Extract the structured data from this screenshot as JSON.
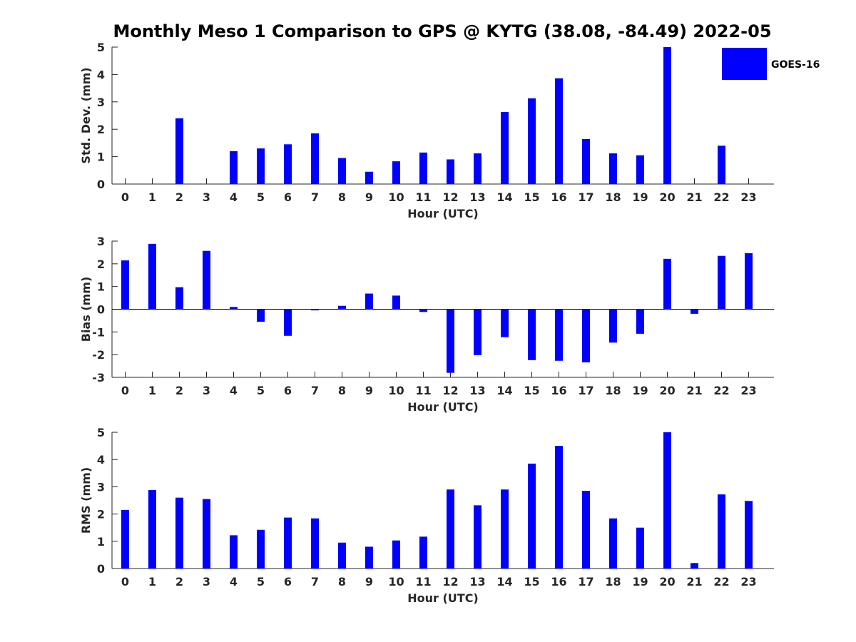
{
  "title": "Monthly Meso 1 Comparison to GPS @ KYTG (38.08, -84.49) 2022-05",
  "legend": {
    "label": "GOES-16",
    "color": "#0000ff"
  },
  "chart_data": [
    {
      "type": "bar",
      "xlabel": "Hour (UTC)",
      "ylabel": "Std. Dev. (mm)",
      "ylim": [
        0,
        5
      ],
      "yticks": [
        "0",
        "1",
        "2",
        "3",
        "4",
        "5"
      ],
      "categories": [
        "0",
        "1",
        "2",
        "3",
        "4",
        "5",
        "6",
        "7",
        "8",
        "9",
        "10",
        "11",
        "12",
        "13",
        "14",
        "15",
        "16",
        "17",
        "18",
        "19",
        "20",
        "21",
        "22",
        "23"
      ],
      "series": [
        {
          "name": "GOES-16",
          "color": "#0000ff",
          "values": [
            null,
            null,
            2.4,
            null,
            1.2,
            1.3,
            1.45,
            1.85,
            0.95,
            0.45,
            0.83,
            1.15,
            0.9,
            1.12,
            2.63,
            3.13,
            3.86,
            1.64,
            1.12,
            1.05,
            5.0,
            null,
            1.4,
            null
          ]
        }
      ],
      "grid": false,
      "legend": "top-right"
    },
    {
      "type": "bar",
      "xlabel": "Hour (UTC)",
      "ylabel": "Bias (mm)",
      "ylim": [
        -3,
        3
      ],
      "yticks": [
        "-3",
        "-2",
        "-1",
        "0",
        "1",
        "2",
        "3"
      ],
      "categories": [
        "0",
        "1",
        "2",
        "3",
        "4",
        "5",
        "6",
        "7",
        "8",
        "9",
        "10",
        "11",
        "12",
        "13",
        "14",
        "15",
        "16",
        "17",
        "18",
        "19",
        "20",
        "21",
        "22",
        "23"
      ],
      "series": [
        {
          "name": "GOES-16",
          "color": "#0000ff",
          "values": [
            2.15,
            2.88,
            0.97,
            2.57,
            0.1,
            -0.55,
            -1.17,
            -0.05,
            0.15,
            0.69,
            0.6,
            -0.12,
            -2.8,
            -2.02,
            -1.23,
            -2.24,
            -2.27,
            -2.34,
            -1.47,
            -1.08,
            2.22,
            -0.2,
            2.35,
            2.47
          ]
        }
      ],
      "grid": false
    },
    {
      "type": "bar",
      "xlabel": "Hour (UTC)",
      "ylabel": "RMS (mm)",
      "ylim": [
        0,
        5
      ],
      "yticks": [
        "0",
        "1",
        "2",
        "3",
        "4",
        "5"
      ],
      "categories": [
        "0",
        "1",
        "2",
        "3",
        "4",
        "5",
        "6",
        "7",
        "8",
        "9",
        "10",
        "11",
        "12",
        "13",
        "14",
        "15",
        "16",
        "17",
        "18",
        "19",
        "20",
        "21",
        "22",
        "23"
      ],
      "series": [
        {
          "name": "GOES-16",
          "color": "#0000ff",
          "values": [
            2.15,
            2.88,
            2.6,
            2.55,
            1.22,
            1.42,
            1.87,
            1.84,
            0.95,
            0.8,
            1.03,
            1.17,
            2.9,
            2.32,
            2.9,
            3.85,
            4.5,
            2.85,
            1.84,
            1.5,
            5.0,
            0.2,
            2.72,
            2.48
          ]
        }
      ],
      "grid": false
    }
  ]
}
